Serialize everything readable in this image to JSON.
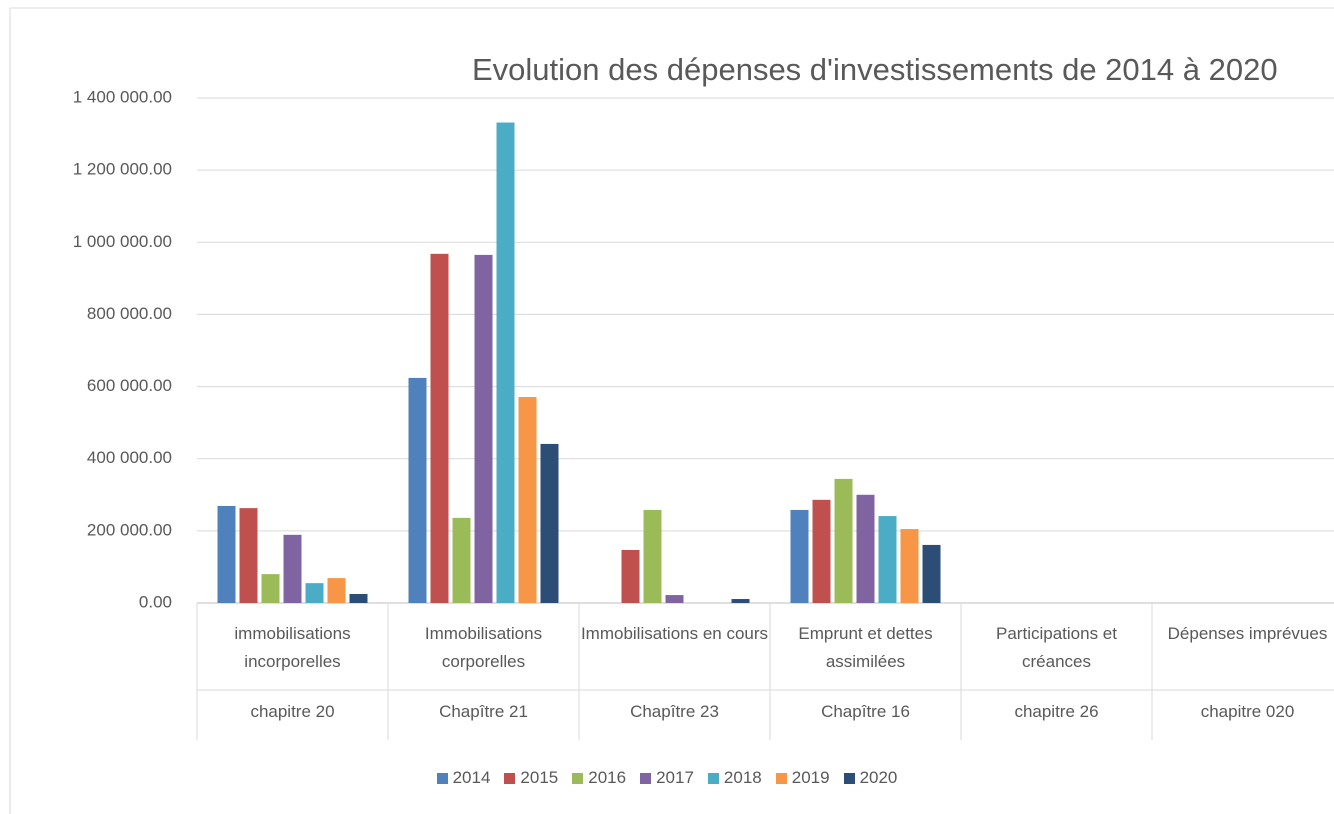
{
  "chart_data": {
    "type": "bar",
    "title": "Evolution des dépenses d'investissements de 2014 à 2020",
    "categories": [
      "immobilisations incorporelles",
      "Immobilisations corporelles",
      "Immobilisations en cours",
      "Emprunt et dettes assimilées",
      "Participations et créances",
      "Dépenses imprévues"
    ],
    "category_groups": [
      "chapitre 20",
      "Chapître 21",
      "Chapître 23",
      "Chapître 16",
      "chapitre 26",
      "chapitre 020"
    ],
    "series": [
      {
        "name": "2014",
        "color": "#4f81bd",
        "values": [
          269000,
          624000,
          0,
          258000,
          0,
          0
        ]
      },
      {
        "name": "2015",
        "color": "#c0504d",
        "values": [
          263000,
          968000,
          147000,
          286000,
          0,
          0
        ]
      },
      {
        "name": "2016",
        "color": "#9bbb59",
        "values": [
          80000,
          236000,
          258000,
          344000,
          0,
          0
        ]
      },
      {
        "name": "2017",
        "color": "#8064a2",
        "values": [
          189000,
          965000,
          22000,
          300000,
          0,
          0
        ]
      },
      {
        "name": "2018",
        "color": "#4bacc6",
        "values": [
          55000,
          1332000,
          0,
          241000,
          0,
          0
        ]
      },
      {
        "name": "2019",
        "color": "#f79646",
        "values": [
          69000,
          571000,
          0,
          205000,
          0,
          0
        ]
      },
      {
        "name": "2020",
        "color": "#2c4d75",
        "values": [
          25000,
          441000,
          11000,
          161000,
          0,
          0
        ]
      }
    ],
    "ylim": [
      0,
      1400000
    ],
    "yticks": [
      {
        "value": 0,
        "label": "0.00"
      },
      {
        "value": 200000,
        "label": "200 000.00"
      },
      {
        "value": 400000,
        "label": "400 000.00"
      },
      {
        "value": 600000,
        "label": "600 000.00"
      },
      {
        "value": 800000,
        "label": "800 000.00"
      },
      {
        "value": 1000000,
        "label": "1 000 000.00"
      },
      {
        "value": 1200000,
        "label": "1 200 000.00"
      },
      {
        "value": 1400000,
        "label": "1 400 000.00"
      }
    ],
    "grid": true,
    "legend": "bottom"
  }
}
